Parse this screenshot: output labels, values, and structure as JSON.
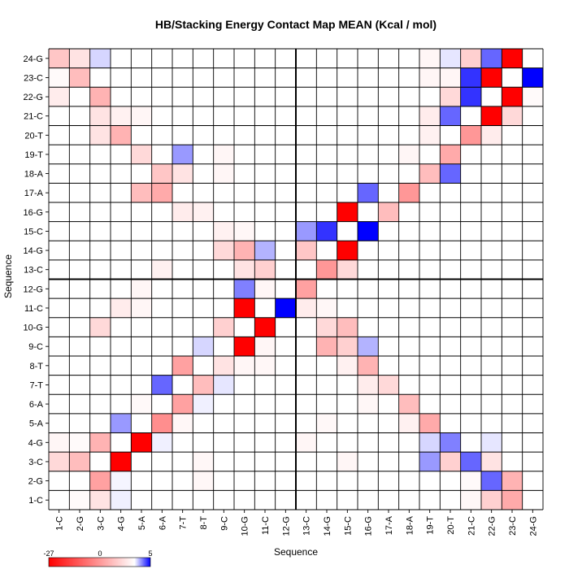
{
  "chart_data": {
    "type": "heatmap",
    "title": "HB/Stacking Energy Contact Map MEAN (Kcal / mol)",
    "xlabel": "Sequence",
    "ylabel": "Sequence",
    "labels": [
      "1-C",
      "2-G",
      "3-C",
      "4-G",
      "5-A",
      "6-A",
      "7-T",
      "8-T",
      "9-C",
      "10-G",
      "11-C",
      "12-G",
      "13-C",
      "14-G",
      "15-C",
      "16-G",
      "17-A",
      "18-A",
      "19-T",
      "20-T",
      "21-C",
      "22-G",
      "23-C",
      "24-G"
    ],
    "colorbar": {
      "min": -27,
      "mid": 0,
      "max": 5,
      "min_label": "-27",
      "mid_label": "0",
      "max_label": "5",
      "min_color": "#ff0000",
      "mid_color": "#ffffff",
      "max_color": "#0000ff"
    },
    "divider_after_index": 11,
    "default_value": 0,
    "cells": [
      [
        1,
        2,
        -0.5
      ],
      [
        1,
        3,
        -3
      ],
      [
        1,
        4,
        0.3
      ],
      [
        2,
        3,
        -10
      ],
      [
        2,
        4,
        0.2
      ],
      [
        3,
        4,
        -27
      ],
      [
        3,
        2,
        -7
      ],
      [
        3,
        1,
        -4
      ],
      [
        4,
        5,
        -27
      ],
      [
        4,
        3,
        -8
      ],
      [
        4,
        1,
        -1
      ],
      [
        4,
        2,
        -0.5
      ],
      [
        4,
        6,
        0.3
      ],
      [
        5,
        6,
        -12
      ],
      [
        5,
        4,
        2
      ],
      [
        5,
        7,
        -0.8
      ],
      [
        6,
        7,
        -10
      ],
      [
        6,
        5,
        -0.6
      ],
      [
        6,
        8,
        0.3
      ],
      [
        7,
        8,
        -7
      ],
      [
        7,
        6,
        3
      ],
      [
        8,
        9,
        -3
      ],
      [
        8,
        7,
        -10
      ],
      [
        9,
        10,
        -27
      ],
      [
        9,
        8,
        0.8
      ],
      [
        10,
        11,
        -27
      ],
      [
        10,
        9,
        -5
      ],
      [
        11,
        12,
        5
      ],
      [
        11,
        10,
        -27
      ],
      [
        12,
        11,
        5
      ],
      [
        12,
        10,
        2.5
      ],
      [
        12,
        13,
        -10
      ],
      [
        12,
        11,
        -1
      ],
      [
        13,
        14,
        -11
      ],
      [
        13,
        15,
        -4
      ],
      [
        14,
        15,
        -27
      ],
      [
        14,
        13,
        -6
      ],
      [
        15,
        16,
        5
      ],
      [
        15,
        14,
        4
      ],
      [
        15,
        13,
        2
      ],
      [
        16,
        17,
        -7
      ],
      [
        16,
        15,
        -27
      ],
      [
        17,
        18,
        -11
      ],
      [
        17,
        16,
        3
      ],
      [
        18,
        19,
        -7
      ],
      [
        18,
        20,
        3
      ],
      [
        19,
        20,
        -9
      ],
      [
        19,
        18,
        -1
      ],
      [
        20,
        21,
        -11
      ],
      [
        20,
        19,
        -1.5
      ],
      [
        21,
        22,
        -27
      ],
      [
        21,
        23,
        -4
      ],
      [
        21,
        20,
        3
      ],
      [
        22,
        23,
        -27
      ],
      [
        22,
        21,
        4
      ],
      [
        22,
        24,
        -0.5
      ],
      [
        23,
        24,
        5
      ],
      [
        23,
        22,
        -27
      ],
      [
        23,
        21,
        4
      ],
      [
        24,
        23,
        -27
      ],
      [
        24,
        22,
        3
      ],
      [
        24,
        21,
        -5
      ],
      [
        1,
        21,
        -0.8
      ],
      [
        1,
        22,
        -5
      ],
      [
        1,
        23,
        -9
      ],
      [
        2,
        22,
        3
      ],
      [
        2,
        23,
        -8
      ],
      [
        2,
        21,
        -0.5
      ],
      [
        3,
        21,
        3
      ],
      [
        3,
        20,
        -5
      ],
      [
        3,
        22,
        -3
      ],
      [
        3,
        19,
        2
      ],
      [
        4,
        19,
        0.8
      ],
      [
        4,
        20,
        2.5
      ],
      [
        4,
        22,
        0.5
      ],
      [
        5,
        19,
        -9
      ],
      [
        5,
        18,
        -1.5
      ],
      [
        6,
        18,
        -7
      ],
      [
        6,
        16,
        -0.8
      ],
      [
        7,
        17,
        -4
      ],
      [
        7,
        16,
        -2
      ],
      [
        8,
        16,
        -8
      ],
      [
        8,
        15,
        -1.5
      ],
      [
        9,
        14,
        -8
      ],
      [
        9,
        15,
        -5
      ],
      [
        9,
        16,
        1.5
      ],
      [
        10,
        15,
        -7
      ],
      [
        10,
        14,
        -4
      ],
      [
        11,
        13,
        -2
      ],
      [
        11,
        14,
        -0.8
      ],
      [
        13,
        10,
        -3
      ],
      [
        13,
        11,
        -5
      ],
      [
        14,
        9,
        -4
      ],
      [
        14,
        10,
        -8
      ],
      [
        14,
        11,
        1.5
      ],
      [
        15,
        9,
        -1.5
      ],
      [
        15,
        10,
        -0.8
      ],
      [
        16,
        7,
        -2
      ],
      [
        16,
        8,
        -1.5
      ],
      [
        17,
        6,
        -9
      ],
      [
        17,
        5,
        -7
      ],
      [
        18,
        6,
        -6
      ],
      [
        18,
        7,
        -3
      ],
      [
        19,
        5,
        -4
      ],
      [
        20,
        4,
        -8
      ],
      [
        20,
        3,
        -3
      ],
      [
        21,
        4,
        -1.5
      ],
      [
        21,
        3,
        -3
      ],
      [
        21,
        5,
        -1
      ],
      [
        22,
        3,
        -8
      ],
      [
        22,
        1,
        -2
      ],
      [
        23,
        2,
        -7
      ],
      [
        23,
        1,
        -0.5
      ],
      [
        24,
        1,
        -6
      ],
      [
        24,
        2,
        -3
      ],
      [
        24,
        3,
        0.8
      ],
      [
        20,
        22,
        -2
      ],
      [
        21,
        19,
        -2
      ],
      [
        22,
        20,
        -4
      ],
      [
        23,
        20,
        -1
      ],
      [
        23,
        19,
        -1
      ],
      [
        24,
        19,
        -1
      ],
      [
        24,
        20,
        0.5
      ],
      [
        10,
        3,
        -4
      ],
      [
        11,
        4,
        -2
      ],
      [
        12,
        5,
        -1
      ],
      [
        13,
        6,
        -1.5
      ],
      [
        11,
        5,
        -1
      ],
      [
        19,
        7,
        2
      ],
      [
        18,
        9,
        -1
      ],
      [
        19,
        9,
        -1
      ],
      [
        3,
        15,
        -1
      ],
      [
        5,
        14,
        -0.7
      ],
      [
        4,
        13,
        -1
      ],
      [
        2,
        8,
        -0.8
      ],
      [
        3,
        8,
        -0.8
      ],
      [
        7,
        9,
        0.5
      ],
      [
        8,
        10,
        -1
      ],
      [
        8,
        11,
        -0.8
      ],
      [
        9,
        11,
        -1
      ]
    ]
  }
}
